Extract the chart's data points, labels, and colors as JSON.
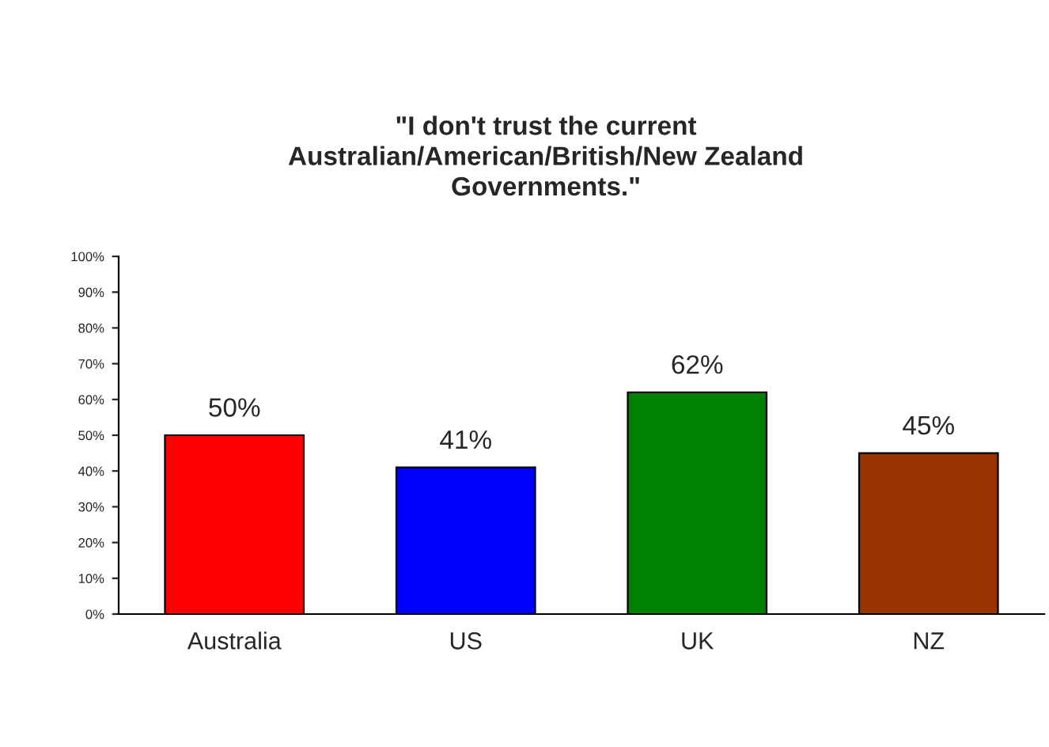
{
  "chart_data": {
    "type": "bar",
    "title": "\"I don't trust the current\nAustralian/American/British/New Zealand\nGovernments.\"",
    "categories": [
      "Australia",
      "US",
      "UK",
      "NZ"
    ],
    "values": [
      50,
      41,
      62,
      45
    ],
    "colors": [
      "#ff0000",
      "#0000ff",
      "#008000",
      "#993300"
    ],
    "value_labels": [
      "50%",
      "41%",
      "62%",
      "45%"
    ],
    "ylim": [
      0,
      100
    ],
    "yticks": [
      {
        "value": 0,
        "label": "0%"
      },
      {
        "value": 10,
        "label": "10%"
      },
      {
        "value": 20,
        "label": "20%"
      },
      {
        "value": 30,
        "label": "30%"
      },
      {
        "value": 40,
        "label": "40%"
      },
      {
        "value": 50,
        "label": "50%"
      },
      {
        "value": 60,
        "label": "60%"
      },
      {
        "value": 70,
        "label": "70%"
      },
      {
        "value": 80,
        "label": "80%"
      },
      {
        "value": 90,
        "label": "90%"
      },
      {
        "value": 100,
        "label": "100%"
      }
    ],
    "grid": false
  }
}
